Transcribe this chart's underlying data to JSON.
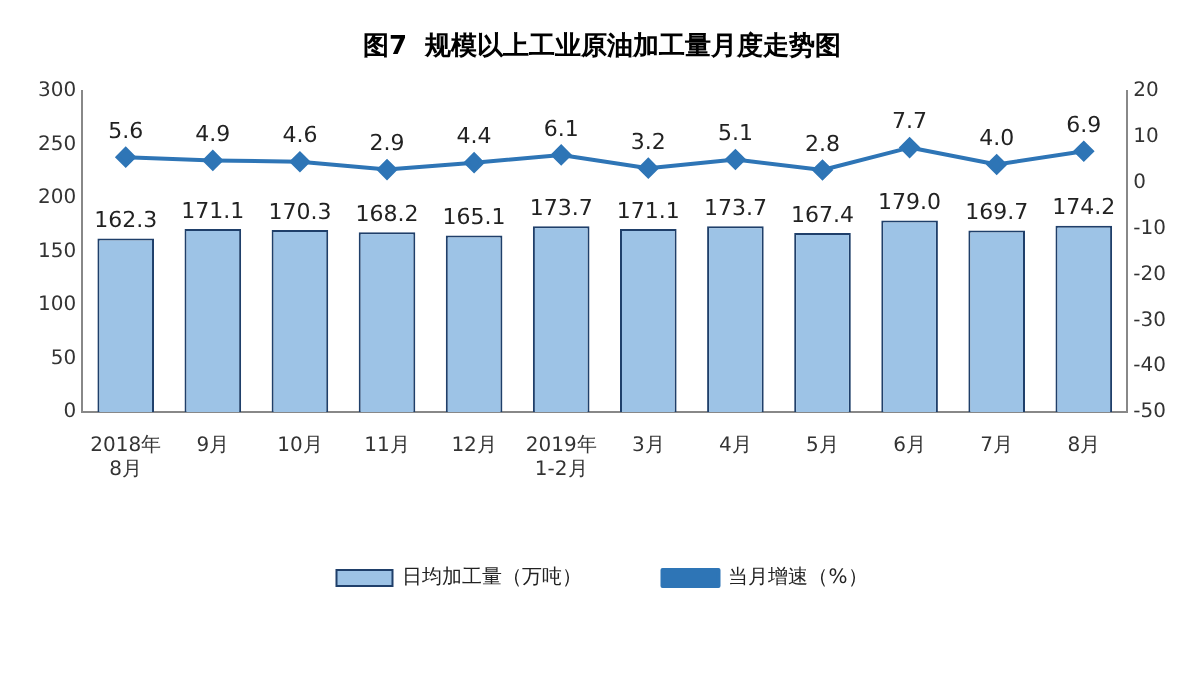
{
  "chart_data": {
    "type": "bar",
    "title": "图7  规模以上工业原油加工量月度走势图",
    "categories": [
      "2018年\n8月",
      "9月",
      "10月",
      "11月",
      "12月",
      "2019年\n1-2月",
      "3月",
      "4月",
      "5月",
      "6月",
      "7月",
      "8月"
    ],
    "series": [
      {
        "name": "日均加工量（万吨）",
        "color": "#9dc3e6",
        "values": [
          162.3,
          171.1,
          170.3,
          168.2,
          165.1,
          173.7,
          171.1,
          173.7,
          167.4,
          179.0,
          169.7,
          174.2
        ],
        "value_labels": [
          "162.3",
          "171.1",
          "170.3",
          "168.2",
          "165.1",
          "173.7",
          "171.1",
          "173.7",
          "167.4",
          "179.0",
          "169.7",
          "174.2"
        ]
      },
      {
        "name": "当月增速（%）",
        "type": "line",
        "axis": "y2",
        "color": "#2e75b6",
        "values": [
          5.6,
          4.9,
          4.6,
          2.9,
          4.4,
          6.1,
          3.2,
          5.1,
          2.8,
          7.7,
          4.0,
          6.9
        ],
        "value_labels": [
          "5.6",
          "4.9",
          "4.6",
          "2.9",
          "4.4",
          "6.1",
          "3.2",
          "5.1",
          "2.8",
          "7.7",
          "4.0",
          "6.9"
        ]
      }
    ],
    "ylim": [
      0,
      300
    ],
    "yticks": [
      0,
      50,
      100,
      150,
      200,
      250,
      300
    ],
    "y2lim": [
      -50,
      20
    ],
    "y2ticks": [
      -50,
      -40,
      -30,
      -20,
      -10,
      0,
      10,
      20
    ],
    "grid": false,
    "legend": "bottom",
    "marker": "diamond",
    "line_style": "solid"
  }
}
